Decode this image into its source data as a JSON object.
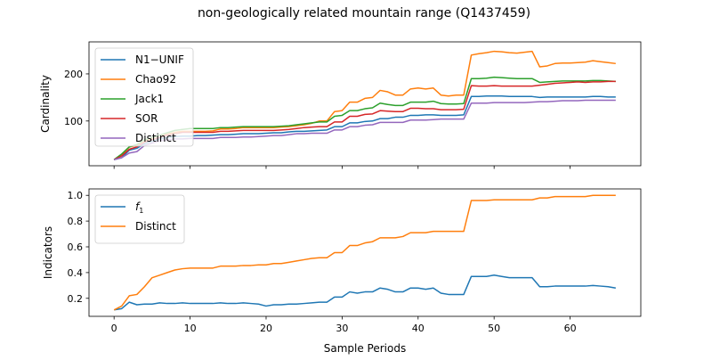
{
  "figure": {
    "title": "non-geologically related mountain range (Q1437459)"
  },
  "colors": {
    "blue": "#1f77b4",
    "orange": "#ff7f0e",
    "green": "#2ca02c",
    "red": "#d62728",
    "purple": "#9467bd"
  },
  "chart_data": [
    {
      "type": "line",
      "title": "",
      "xlabel": "",
      "ylabel": "Cardinality",
      "xlim": [
        -3.3,
        69.3
      ],
      "ylim": [
        5,
        268
      ],
      "x_ticks": [
        0,
        10,
        20,
        30,
        40,
        50,
        60
      ],
      "x_tick_labels_visible": false,
      "y_ticks": [
        100,
        200
      ],
      "grid": false,
      "legend_position": "top-left",
      "series": [
        {
          "name": "N1−UNIF",
          "color": "#1f77b4",
          "x": [
            0,
            1,
            2,
            3,
            4,
            5,
            6,
            7,
            8,
            9,
            10,
            11,
            12,
            13,
            14,
            15,
            16,
            17,
            18,
            19,
            20,
            21,
            22,
            23,
            24,
            25,
            26,
            27,
            28,
            29,
            30,
            31,
            32,
            33,
            34,
            35,
            36,
            37,
            38,
            39,
            40,
            41,
            42,
            43,
            44,
            45,
            46,
            47,
            48,
            49,
            50,
            51,
            52,
            53,
            54,
            55,
            56,
            57,
            58,
            59,
            60,
            61,
            62,
            63,
            64,
            65,
            66
          ],
          "values": [
            18,
            22,
            38,
            42,
            52,
            57,
            62,
            65,
            67,
            68,
            68,
            69,
            69,
            70,
            71,
            71,
            72,
            73,
            73,
            73,
            74,
            75,
            75,
            77,
            78,
            78,
            79,
            80,
            81,
            88,
            88,
            96,
            96,
            99,
            100,
            105,
            105,
            108,
            108,
            112,
            112,
            113,
            113,
            112,
            112,
            112,
            113,
            152,
            152,
            153,
            153,
            153,
            152,
            152,
            152,
            152,
            150,
            151,
            151,
            151,
            151,
            151,
            151,
            152,
            152,
            151,
            151
          ]
        },
        {
          "name": "Chao92",
          "color": "#ff7f0e",
          "x": [
            0,
            1,
            2,
            3,
            4,
            5,
            6,
            7,
            8,
            9,
            10,
            11,
            12,
            13,
            14,
            15,
            16,
            17,
            18,
            19,
            20,
            21,
            22,
            23,
            24,
            25,
            26,
            27,
            28,
            29,
            30,
            31,
            32,
            33,
            34,
            35,
            36,
            37,
            38,
            39,
            40,
            41,
            42,
            43,
            44,
            45,
            46,
            47,
            48,
            49,
            50,
            51,
            52,
            53,
            54,
            55,
            56,
            57,
            58,
            59,
            60,
            61,
            62,
            63,
            64,
            65,
            66
          ],
          "values": [
            18,
            28,
            45,
            48,
            58,
            63,
            70,
            72,
            76,
            78,
            78,
            78,
            78,
            79,
            83,
            83,
            84,
            86,
            86,
            86,
            86,
            86,
            87,
            88,
            90,
            92,
            95,
            100,
            100,
            120,
            122,
            140,
            140,
            148,
            150,
            165,
            162,
            155,
            155,
            168,
            170,
            168,
            170,
            155,
            153,
            155,
            155,
            240,
            243,
            245,
            248,
            247,
            245,
            244,
            246,
            248,
            215,
            217,
            222,
            223,
            223,
            224,
            225,
            228,
            226,
            224,
            222
          ]
        },
        {
          "name": "Jack1",
          "color": "#2ca02c",
          "x": [
            0,
            1,
            2,
            3,
            4,
            5,
            6,
            7,
            8,
            9,
            10,
            11,
            12,
            13,
            14,
            15,
            16,
            17,
            18,
            19,
            20,
            21,
            22,
            23,
            24,
            25,
            26,
            27,
            28,
            29,
            30,
            31,
            32,
            33,
            34,
            35,
            36,
            37,
            38,
            39,
            40,
            41,
            42,
            43,
            44,
            45,
            46,
            47,
            48,
            49,
            50,
            51,
            52,
            53,
            54,
            55,
            56,
            57,
            58,
            59,
            60,
            61,
            62,
            63,
            64,
            65,
            66
          ],
          "values": [
            18,
            30,
            45,
            50,
            60,
            65,
            70,
            75,
            80,
            82,
            84,
            84,
            84,
            84,
            86,
            86,
            87,
            88,
            88,
            88,
            88,
            88,
            89,
            90,
            92,
            94,
            96,
            98,
            98,
            110,
            112,
            122,
            122,
            126,
            128,
            138,
            135,
            133,
            133,
            140,
            140,
            140,
            142,
            137,
            136,
            136,
            137,
            190,
            190,
            191,
            193,
            192,
            191,
            190,
            190,
            190,
            182,
            183,
            184,
            185,
            185,
            185,
            185,
            186,
            186,
            185,
            184
          ]
        },
        {
          "name": "SOR",
          "color": "#d62728",
          "x": [
            0,
            1,
            2,
            3,
            4,
            5,
            6,
            7,
            8,
            9,
            10,
            11,
            12,
            13,
            14,
            15,
            16,
            17,
            18,
            19,
            20,
            21,
            22,
            23,
            24,
            25,
            26,
            27,
            28,
            29,
            30,
            31,
            32,
            33,
            34,
            35,
            36,
            37,
            38,
            39,
            40,
            41,
            42,
            43,
            44,
            45,
            46,
            47,
            48,
            49,
            50,
            51,
            52,
            53,
            54,
            55,
            56,
            57,
            58,
            59,
            60,
            61,
            62,
            63,
            64,
            65,
            66
          ],
          "values": [
            18,
            26,
            40,
            45,
            55,
            60,
            65,
            70,
            73,
            76,
            76,
            76,
            76,
            76,
            78,
            78,
            79,
            80,
            80,
            80,
            80,
            80,
            81,
            82,
            84,
            86,
            87,
            88,
            88,
            98,
            98,
            110,
            110,
            114,
            115,
            122,
            121,
            120,
            120,
            127,
            127,
            126,
            126,
            124,
            124,
            124,
            125,
            175,
            174,
            174,
            175,
            174,
            174,
            174,
            174,
            174,
            176,
            178,
            180,
            181,
            182,
            183,
            182,
            183,
            183,
            184,
            184
          ]
        },
        {
          "name": "Distinct",
          "color": "#9467bd",
          "x": [
            0,
            1,
            2,
            3,
            4,
            5,
            6,
            7,
            8,
            9,
            10,
            11,
            12,
            13,
            14,
            15,
            16,
            17,
            18,
            19,
            20,
            21,
            22,
            23,
            24,
            25,
            26,
            27,
            28,
            29,
            30,
            31,
            32,
            33,
            34,
            35,
            36,
            37,
            38,
            39,
            40,
            41,
            42,
            43,
            44,
            45,
            46,
            47,
            48,
            49,
            50,
            51,
            52,
            53,
            54,
            55,
            56,
            57,
            58,
            59,
            60,
            61,
            62,
            63,
            64,
            65,
            66
          ],
          "values": [
            18,
            22,
            32,
            35,
            48,
            53,
            58,
            60,
            62,
            62,
            63,
            63,
            63,
            63,
            65,
            65,
            65,
            66,
            66,
            67,
            68,
            69,
            69,
            71,
            73,
            73,
            74,
            74,
            74,
            81,
            81,
            88,
            88,
            91,
            92,
            97,
            97,
            97,
            97,
            102,
            102,
            102,
            103,
            104,
            104,
            104,
            104,
            138,
            138,
            138,
            139,
            139,
            139,
            139,
            139,
            140,
            141,
            141,
            142,
            143,
            143,
            143,
            144,
            144,
            144,
            144,
            144
          ]
        }
      ]
    },
    {
      "type": "line",
      "title": "",
      "xlabel": "Sample Periods",
      "ylabel": "Indicators",
      "xlim": [
        -3.3,
        69.3
      ],
      "ylim": [
        0.06,
        1.05
      ],
      "x_ticks": [
        0,
        10,
        20,
        30,
        40,
        50,
        60
      ],
      "x_tick_labels_visible": true,
      "y_ticks": [
        0.2,
        0.4,
        0.6,
        0.8,
        1.0
      ],
      "y_tick_labels": [
        "0.2",
        "0.4",
        "0.6",
        "0.8",
        "1.0"
      ],
      "grid": false,
      "legend_position": "top-left",
      "series": [
        {
          "name": "f1",
          "label_main": "f",
          "label_sub": "1",
          "color": "#1f77b4",
          "x": [
            0,
            1,
            2,
            3,
            4,
            5,
            6,
            7,
            8,
            9,
            10,
            11,
            12,
            13,
            14,
            15,
            16,
            17,
            18,
            19,
            20,
            21,
            22,
            23,
            24,
            25,
            26,
            27,
            28,
            29,
            30,
            31,
            32,
            33,
            34,
            35,
            36,
            37,
            38,
            39,
            40,
            41,
            42,
            43,
            44,
            45,
            46,
            47,
            48,
            49,
            50,
            51,
            52,
            53,
            54,
            55,
            56,
            57,
            58,
            59,
            60,
            61,
            62,
            63,
            64,
            65,
            66
          ],
          "values": [
            0.11,
            0.12,
            0.17,
            0.15,
            0.155,
            0.155,
            0.165,
            0.16,
            0.16,
            0.165,
            0.16,
            0.16,
            0.16,
            0.16,
            0.165,
            0.16,
            0.16,
            0.165,
            0.16,
            0.155,
            0.14,
            0.15,
            0.15,
            0.155,
            0.155,
            0.16,
            0.165,
            0.17,
            0.17,
            0.21,
            0.21,
            0.25,
            0.24,
            0.25,
            0.25,
            0.28,
            0.27,
            0.25,
            0.25,
            0.28,
            0.28,
            0.27,
            0.28,
            0.24,
            0.23,
            0.23,
            0.23,
            0.37,
            0.37,
            0.37,
            0.38,
            0.37,
            0.36,
            0.36,
            0.36,
            0.36,
            0.29,
            0.29,
            0.295,
            0.295,
            0.295,
            0.295,
            0.295,
            0.3,
            0.295,
            0.29,
            0.28
          ]
        },
        {
          "name": "Distinct",
          "color": "#ff7f0e",
          "x": [
            0,
            1,
            2,
            3,
            4,
            5,
            6,
            7,
            8,
            9,
            10,
            11,
            12,
            13,
            14,
            15,
            16,
            17,
            18,
            19,
            20,
            21,
            22,
            23,
            24,
            25,
            26,
            27,
            28,
            29,
            30,
            31,
            32,
            33,
            34,
            35,
            36,
            37,
            38,
            39,
            40,
            41,
            42,
            43,
            44,
            45,
            46,
            47,
            48,
            49,
            50,
            51,
            52,
            53,
            54,
            55,
            56,
            57,
            58,
            59,
            60,
            61,
            62,
            63,
            64,
            65,
            66
          ],
          "values": [
            0.11,
            0.14,
            0.22,
            0.23,
            0.29,
            0.36,
            0.38,
            0.4,
            0.42,
            0.43,
            0.435,
            0.435,
            0.435,
            0.435,
            0.45,
            0.45,
            0.45,
            0.455,
            0.455,
            0.46,
            0.46,
            0.47,
            0.47,
            0.48,
            0.49,
            0.5,
            0.51,
            0.515,
            0.515,
            0.555,
            0.555,
            0.61,
            0.61,
            0.63,
            0.64,
            0.67,
            0.67,
            0.67,
            0.68,
            0.71,
            0.71,
            0.71,
            0.72,
            0.72,
            0.72,
            0.72,
            0.72,
            0.96,
            0.96,
            0.96,
            0.965,
            0.965,
            0.965,
            0.965,
            0.965,
            0.965,
            0.98,
            0.98,
            0.99,
            0.99,
            0.99,
            0.99,
            0.99,
            1.0,
            1.0,
            1.0,
            1.0
          ]
        }
      ]
    }
  ]
}
